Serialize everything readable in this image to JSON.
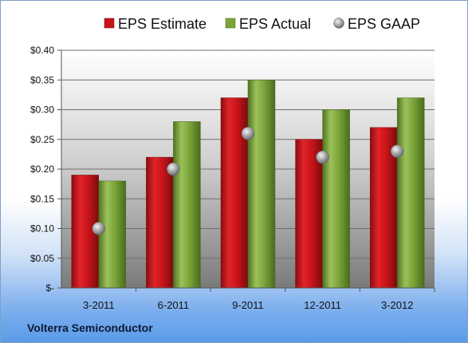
{
  "footer": {
    "company": "Volterra Semiconductor"
  },
  "chart_data": {
    "type": "bar",
    "title": "",
    "xlabel": "",
    "ylabel": "",
    "categories": [
      "3-2011",
      "6-2011",
      "9-2011",
      "12-2011",
      "3-2012"
    ],
    "series": [
      {
        "name": "EPS Estimate",
        "type": "bar",
        "color": "#c8141a",
        "values": [
          0.19,
          0.22,
          0.32,
          0.25,
          0.27
        ]
      },
      {
        "name": "EPS Actual",
        "type": "bar",
        "color": "#7aa33a",
        "values": [
          0.18,
          0.28,
          0.35,
          0.3,
          0.32
        ]
      },
      {
        "name": "EPS GAAP",
        "type": "marker",
        "color": "#a7a7a7",
        "values": [
          0.1,
          0.2,
          0.26,
          0.22,
          0.23
        ]
      }
    ],
    "ylim": [
      0,
      0.4
    ],
    "yticks": [
      0,
      0.05,
      0.1,
      0.15,
      0.2,
      0.25,
      0.3,
      0.35,
      0.4
    ],
    "ytick_labels": [
      "$-",
      "$0.05",
      "$0.10",
      "$0.15",
      "$0.20",
      "$0.25",
      "$0.30",
      "$0.35",
      "$0.40"
    ],
    "grid": true,
    "legend_position": "top"
  }
}
